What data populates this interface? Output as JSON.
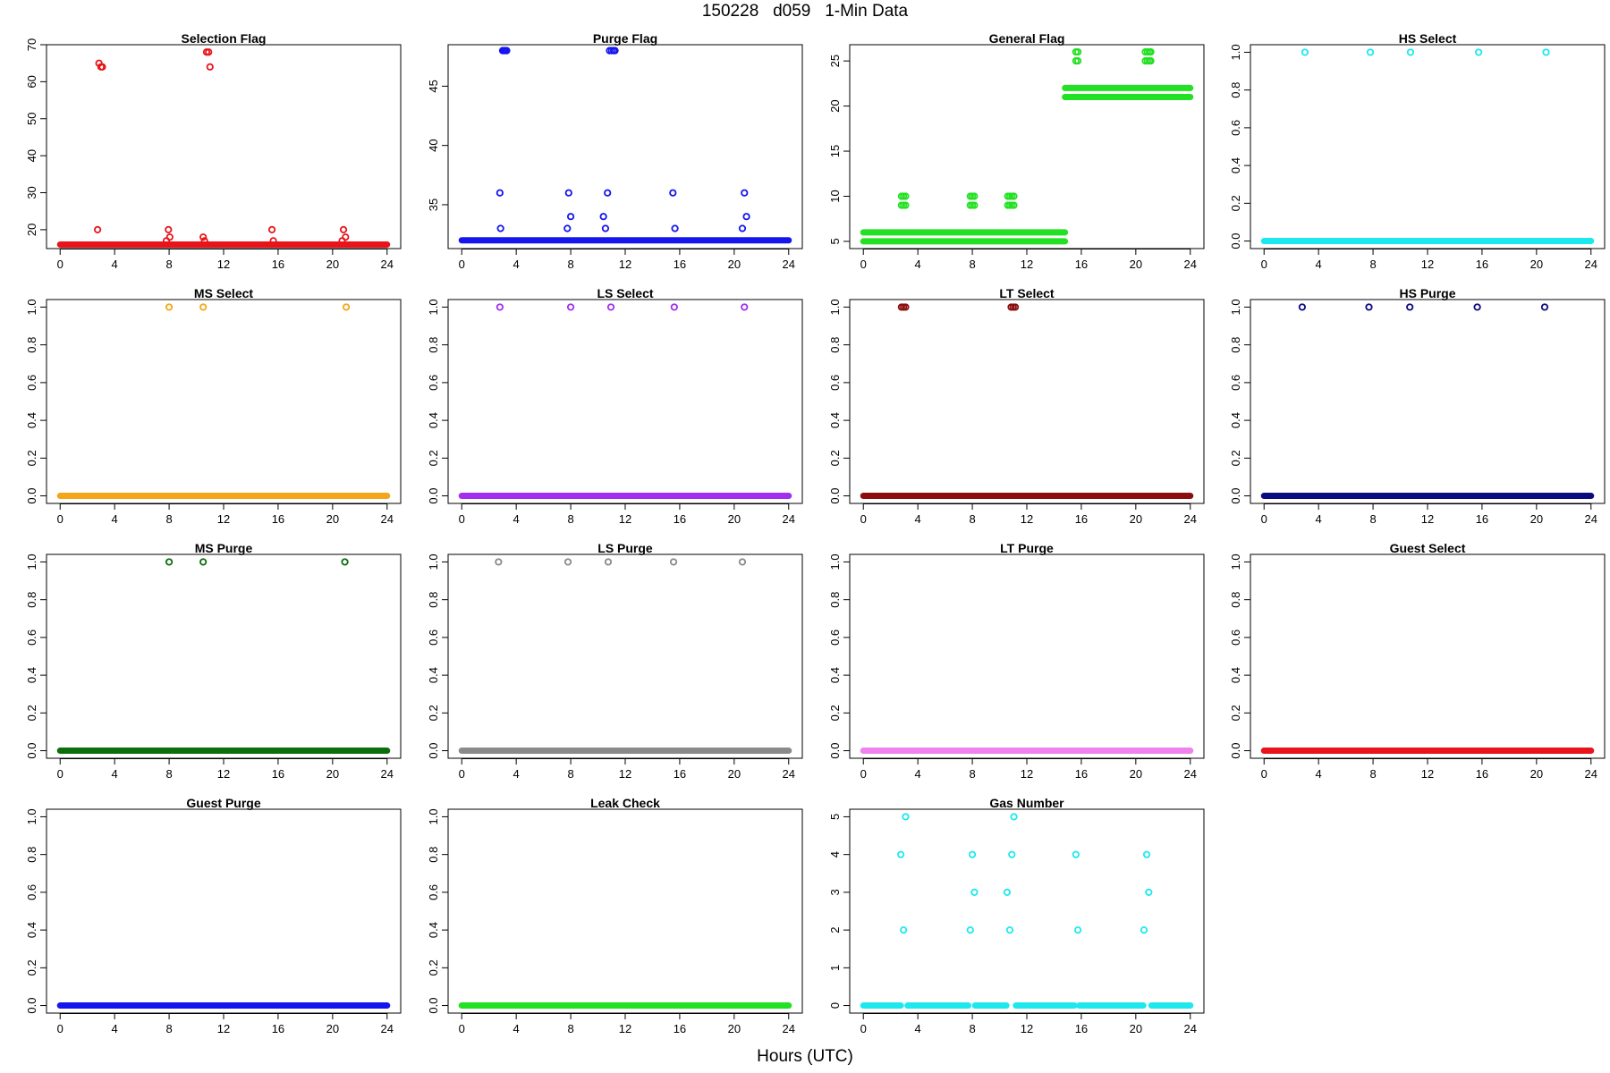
{
  "figure": {
    "title": "150228   d059   1-Min Data",
    "xlabel": "Hours (UTC)"
  },
  "chart_data": [
    {
      "type": "scatter",
      "title": "Selection Flag",
      "color": "#e8141a",
      "xlabel": "",
      "ylabel": "",
      "xlim": [
        -1,
        25
      ],
      "ylim": [
        14.9,
        70
      ],
      "xticks": [
        0,
        4,
        8,
        12,
        16,
        20,
        24
      ],
      "yticks": [
        20,
        30,
        40,
        50,
        60,
        70
      ],
      "baseline": [
        {
          "y": 16,
          "start": 0,
          "end": 24
        }
      ],
      "points": [
        [
          2.75,
          20
        ],
        [
          2.85,
          65
        ],
        [
          3.0,
          64
        ],
        [
          3.1,
          64
        ],
        [
          7.8,
          17
        ],
        [
          7.95,
          20
        ],
        [
          8.05,
          18
        ],
        [
          10.5,
          18
        ],
        [
          10.6,
          17
        ],
        [
          10.75,
          68
        ],
        [
          10.9,
          68
        ],
        [
          11.0,
          64
        ],
        [
          15.55,
          20
        ],
        [
          15.65,
          17
        ],
        [
          20.7,
          17
        ],
        [
          20.8,
          20
        ],
        [
          20.95,
          18
        ]
      ]
    },
    {
      "type": "scatter",
      "title": "Purge Flag",
      "color": "#1515ee",
      "xlabel": "",
      "ylabel": "",
      "xlim": [
        -1,
        25
      ],
      "ylim": [
        31.3,
        48.5
      ],
      "xticks": [
        0,
        4,
        8,
        12,
        16,
        20,
        24
      ],
      "yticks": [
        35,
        40,
        45
      ],
      "baseline": [
        {
          "y": 32,
          "start": 0,
          "end": 24
        }
      ],
      "points": [
        [
          2.8,
          36
        ],
        [
          2.85,
          33
        ],
        [
          3.0,
          48
        ],
        [
          3.1,
          48
        ],
        [
          3.2,
          48
        ],
        [
          3.3,
          48
        ],
        [
          7.75,
          33
        ],
        [
          7.85,
          36
        ],
        [
          8.0,
          34
        ],
        [
          10.4,
          34
        ],
        [
          10.55,
          33
        ],
        [
          10.7,
          36
        ],
        [
          10.85,
          48
        ],
        [
          11.0,
          48
        ],
        [
          11.15,
          48
        ],
        [
          11.25,
          48
        ],
        [
          15.5,
          36
        ],
        [
          15.65,
          33
        ],
        [
          20.6,
          33
        ],
        [
          20.75,
          36
        ],
        [
          20.9,
          34
        ]
      ]
    },
    {
      "type": "scatter",
      "title": "General Flag",
      "color": "#22e022",
      "xlabel": "",
      "ylabel": "",
      "xlim": [
        -1,
        25
      ],
      "ylim": [
        4.2,
        26.8
      ],
      "xticks": [
        0,
        4,
        8,
        12,
        16,
        20,
        24
      ],
      "yticks": [
        5,
        10,
        15,
        20,
        25
      ],
      "baseline": [
        {
          "y": 5,
          "start": 0,
          "end": 14.8
        },
        {
          "y": 6,
          "start": 0,
          "end": 14.8
        },
        {
          "y": 21,
          "start": 14.8,
          "end": 24
        },
        {
          "y": 22,
          "start": 14.8,
          "end": 24
        }
      ],
      "points": [
        [
          2.8,
          10
        ],
        [
          2.95,
          10
        ],
        [
          3.1,
          10
        ],
        [
          2.8,
          9
        ],
        [
          2.95,
          9
        ],
        [
          3.1,
          9
        ],
        [
          7.85,
          10
        ],
        [
          8.0,
          10
        ],
        [
          8.15,
          10
        ],
        [
          7.85,
          9
        ],
        [
          8.0,
          9
        ],
        [
          8.15,
          9
        ],
        [
          10.6,
          10
        ],
        [
          10.75,
          10
        ],
        [
          10.9,
          10
        ],
        [
          11.05,
          10
        ],
        [
          10.6,
          9
        ],
        [
          10.75,
          9
        ],
        [
          10.9,
          9
        ],
        [
          11.05,
          9
        ],
        [
          15.6,
          26
        ],
        [
          15.75,
          26
        ],
        [
          15.6,
          25
        ],
        [
          15.75,
          25
        ],
        [
          20.7,
          26
        ],
        [
          20.85,
          26
        ],
        [
          21.0,
          26
        ],
        [
          21.1,
          26
        ],
        [
          20.7,
          25
        ],
        [
          20.85,
          25
        ],
        [
          21.0,
          25
        ],
        [
          21.1,
          25
        ]
      ]
    },
    {
      "type": "scatter",
      "title": "HS Select",
      "color": "#1de8ee",
      "xlabel": "",
      "ylabel": "",
      "xlim": [
        -1,
        25
      ],
      "ylim": [
        -0.04,
        1.04
      ],
      "xticks": [
        0,
        4,
        8,
        12,
        16,
        20,
        24
      ],
      "yticks": [
        0.0,
        0.2,
        0.4,
        0.6,
        0.8,
        1.0
      ],
      "baseline": [
        {
          "y": 0,
          "start": 0,
          "end": 24
        }
      ],
      "points": [
        [
          3.0,
          1
        ],
        [
          7.8,
          1
        ],
        [
          10.75,
          1
        ],
        [
          15.75,
          1
        ],
        [
          20.7,
          1
        ]
      ]
    },
    {
      "type": "scatter",
      "title": "MS Select",
      "color": "#f5a51a",
      "xlabel": "",
      "ylabel": "",
      "xlim": [
        -1,
        25
      ],
      "ylim": [
        -0.04,
        1.04
      ],
      "xticks": [
        0,
        4,
        8,
        12,
        16,
        20,
        24
      ],
      "yticks": [
        0.0,
        0.2,
        0.4,
        0.6,
        0.8,
        1.0
      ],
      "baseline": [
        {
          "y": 0,
          "start": 0,
          "end": 24
        }
      ],
      "points": [
        [
          8.0,
          1
        ],
        [
          10.5,
          1
        ],
        [
          21.0,
          1
        ]
      ]
    },
    {
      "type": "scatter",
      "title": "LS Select",
      "color": "#a02ff0",
      "xlabel": "",
      "ylabel": "",
      "xlim": [
        -1,
        25
      ],
      "ylim": [
        -0.04,
        1.04
      ],
      "xticks": [
        0,
        4,
        8,
        12,
        16,
        20,
        24
      ],
      "yticks": [
        0.0,
        0.2,
        0.4,
        0.6,
        0.8,
        1.0
      ],
      "baseline": [
        {
          "y": 0,
          "start": 0,
          "end": 24
        }
      ],
      "points": [
        [
          2.8,
          1
        ],
        [
          8.0,
          1
        ],
        [
          10.95,
          1
        ],
        [
          15.6,
          1
        ],
        [
          20.75,
          1
        ]
      ]
    },
    {
      "type": "scatter",
      "title": "LT Select",
      "color": "#8b0d0d",
      "xlabel": "",
      "ylabel": "",
      "xlim": [
        -1,
        25
      ],
      "ylim": [
        -0.04,
        1.04
      ],
      "xticks": [
        0,
        4,
        8,
        12,
        16,
        20,
        24
      ],
      "yticks": [
        0.0,
        0.2,
        0.4,
        0.6,
        0.8,
        1.0
      ],
      "baseline": [
        {
          "y": 0,
          "start": 0,
          "end": 24
        }
      ],
      "points": [
        [
          2.8,
          1
        ],
        [
          2.95,
          1
        ],
        [
          3.1,
          1
        ],
        [
          10.85,
          1
        ],
        [
          11.0,
          1
        ],
        [
          11.15,
          1
        ]
      ]
    },
    {
      "type": "scatter",
      "title": "HS Purge",
      "color": "#0b0b80",
      "xlabel": "",
      "ylabel": "",
      "xlim": [
        -1,
        25
      ],
      "ylim": [
        -0.04,
        1.04
      ],
      "xticks": [
        0,
        4,
        8,
        12,
        16,
        20,
        24
      ],
      "yticks": [
        0.0,
        0.2,
        0.4,
        0.6,
        0.8,
        1.0
      ],
      "baseline": [
        {
          "y": 0,
          "start": 0,
          "end": 24
        }
      ],
      "points": [
        [
          2.8,
          1
        ],
        [
          7.7,
          1
        ],
        [
          10.7,
          1
        ],
        [
          15.65,
          1
        ],
        [
          20.6,
          1
        ]
      ]
    },
    {
      "type": "scatter",
      "title": "MS Purge",
      "color": "#0b6e0b",
      "xlabel": "",
      "ylabel": "",
      "xlim": [
        -1,
        25
      ],
      "ylim": [
        -0.04,
        1.04
      ],
      "xticks": [
        0,
        4,
        8,
        12,
        16,
        20,
        24
      ],
      "yticks": [
        0.0,
        0.2,
        0.4,
        0.6,
        0.8,
        1.0
      ],
      "baseline": [
        {
          "y": 0,
          "start": 0,
          "end": 24
        }
      ],
      "points": [
        [
          8.0,
          1
        ],
        [
          10.5,
          1
        ],
        [
          20.9,
          1
        ]
      ]
    },
    {
      "type": "scatter",
      "title": "LS Purge",
      "color": "#8a8a8a",
      "xlabel": "",
      "ylabel": "",
      "xlim": [
        -1,
        25
      ],
      "ylim": [
        -0.04,
        1.04
      ],
      "xticks": [
        0,
        4,
        8,
        12,
        16,
        20,
        24
      ],
      "yticks": [
        0.0,
        0.2,
        0.4,
        0.6,
        0.8,
        1.0
      ],
      "baseline": [
        {
          "y": 0,
          "start": 0,
          "end": 24
        }
      ],
      "points": [
        [
          2.7,
          1
        ],
        [
          7.8,
          1
        ],
        [
          10.75,
          1
        ],
        [
          15.55,
          1
        ],
        [
          20.6,
          1
        ]
      ]
    },
    {
      "type": "scatter",
      "title": "LT Purge",
      "color": "#ee82ee",
      "xlabel": "",
      "ylabel": "",
      "xlim": [
        -1,
        25
      ],
      "ylim": [
        -0.04,
        1.04
      ],
      "xticks": [
        0,
        4,
        8,
        12,
        16,
        20,
        24
      ],
      "yticks": [
        0.0,
        0.2,
        0.4,
        0.6,
        0.8,
        1.0
      ],
      "baseline": [
        {
          "y": 0,
          "start": 0,
          "end": 24
        }
      ],
      "points": []
    },
    {
      "type": "scatter",
      "title": "Guest Select",
      "color": "#e8141a",
      "xlabel": "",
      "ylabel": "",
      "xlim": [
        -1,
        25
      ],
      "ylim": [
        -0.04,
        1.04
      ],
      "xticks": [
        0,
        4,
        8,
        12,
        16,
        20,
        24
      ],
      "yticks": [
        0.0,
        0.2,
        0.4,
        0.6,
        0.8,
        1.0
      ],
      "baseline": [
        {
          "y": 0,
          "start": 0,
          "end": 24
        }
      ],
      "points": []
    },
    {
      "type": "scatter",
      "title": "Guest Purge",
      "color": "#1515ee",
      "xlabel": "",
      "ylabel": "",
      "xlim": [
        -1,
        25
      ],
      "ylim": [
        -0.04,
        1.04
      ],
      "xticks": [
        0,
        4,
        8,
        12,
        16,
        20,
        24
      ],
      "yticks": [
        0.0,
        0.2,
        0.4,
        0.6,
        0.8,
        1.0
      ],
      "baseline": [
        {
          "y": 0,
          "start": 0,
          "end": 24
        }
      ],
      "points": []
    },
    {
      "type": "scatter",
      "title": "Leak Check",
      "color": "#22e022",
      "xlabel": "",
      "ylabel": "",
      "xlim": [
        -1,
        25
      ],
      "ylim": [
        -0.04,
        1.04
      ],
      "xticks": [
        0,
        4,
        8,
        12,
        16,
        20,
        24
      ],
      "yticks": [
        0.0,
        0.2,
        0.4,
        0.6,
        0.8,
        1.0
      ],
      "baseline": [
        {
          "y": 0,
          "start": 0,
          "end": 24
        }
      ],
      "points": []
    },
    {
      "type": "scatter",
      "title": "Gas Number",
      "color": "#1de8ee",
      "xlabel": "",
      "ylabel": "",
      "xlim": [
        -1,
        25
      ],
      "ylim": [
        -0.2,
        5.2
      ],
      "xticks": [
        0,
        4,
        8,
        12,
        16,
        20,
        24
      ],
      "yticks": [
        0,
        1,
        2,
        3,
        4,
        5
      ],
      "baseline": [
        {
          "y": 0,
          "start": 0,
          "end": 2.75
        },
        {
          "y": 0,
          "start": 3.25,
          "end": 7.7
        },
        {
          "y": 0,
          "start": 8.2,
          "end": 10.5
        },
        {
          "y": 0,
          "start": 11.2,
          "end": 15.5
        },
        {
          "y": 0,
          "start": 15.85,
          "end": 20.55
        },
        {
          "y": 0,
          "start": 21.15,
          "end": 24
        }
      ],
      "points": [
        [
          2.75,
          4
        ],
        [
          2.95,
          2
        ],
        [
          3.1,
          5
        ],
        [
          7.85,
          2
        ],
        [
          8.0,
          4
        ],
        [
          8.15,
          3
        ],
        [
          10.55,
          3
        ],
        [
          10.75,
          2
        ],
        [
          10.9,
          4
        ],
        [
          11.05,
          5
        ],
        [
          15.6,
          4
        ],
        [
          15.75,
          2
        ],
        [
          20.6,
          2
        ],
        [
          20.8,
          4
        ],
        [
          20.95,
          3
        ]
      ]
    }
  ]
}
